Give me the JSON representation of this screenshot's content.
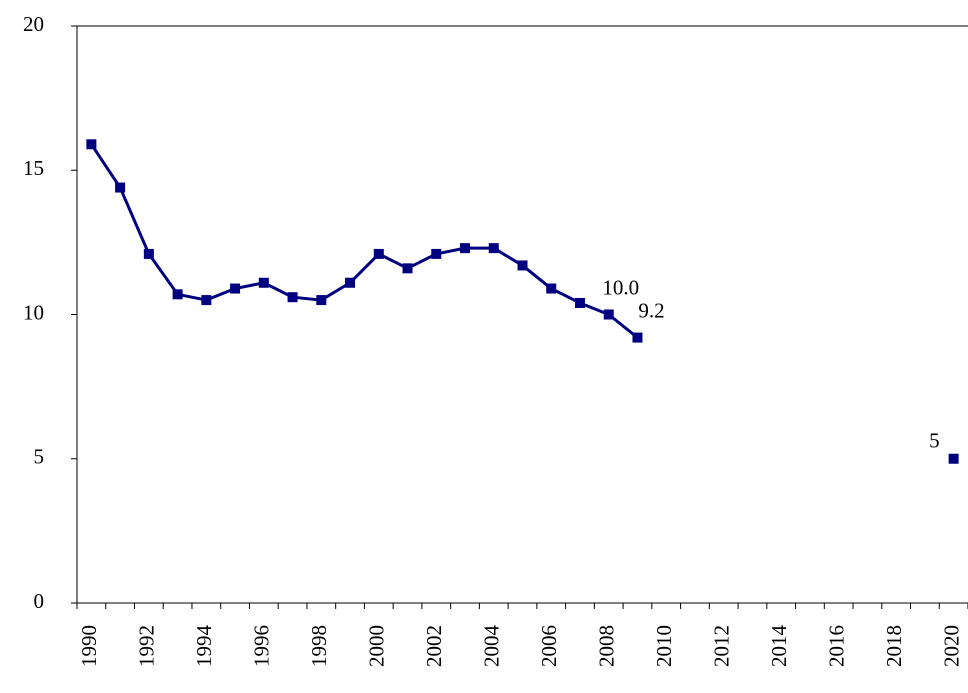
{
  "chart_data": {
    "type": "line",
    "categories": [
      "1990",
      null,
      "1992",
      null,
      "1994",
      null,
      "1996",
      null,
      "1998",
      null,
      "2000",
      null,
      "2002",
      null,
      "2004",
      null,
      "2006",
      null,
      "2008",
      null,
      "2010",
      null,
      "2012",
      null,
      "2014",
      null,
      "2016",
      null,
      "2018",
      null,
      "2020"
    ],
    "series": [
      {
        "color": "#000080",
        "values": [
          15.9,
          14.4,
          12.1,
          10.7,
          10.5,
          10.9,
          11.1,
          10.6,
          10.5,
          11.1,
          12.1,
          11.6,
          12.1,
          12.3,
          12.3,
          11.7,
          10.9,
          10.4,
          10.0,
          9.2,
          null,
          null,
          null,
          null,
          null,
          null,
          null,
          null,
          null,
          null,
          5
        ],
        "value_labels": [
          null,
          null,
          null,
          null,
          null,
          null,
          null,
          null,
          null,
          null,
          null,
          null,
          null,
          null,
          null,
          null,
          null,
          null,
          "10.0",
          "9.2",
          null,
          null,
          null,
          null,
          null,
          null,
          null,
          null,
          null,
          null,
          "5"
        ]
      }
    ],
    "ylim": [
      0,
      20
    ],
    "yticks": [
      0,
      5,
      10,
      15,
      20
    ],
    "grid": false
  }
}
